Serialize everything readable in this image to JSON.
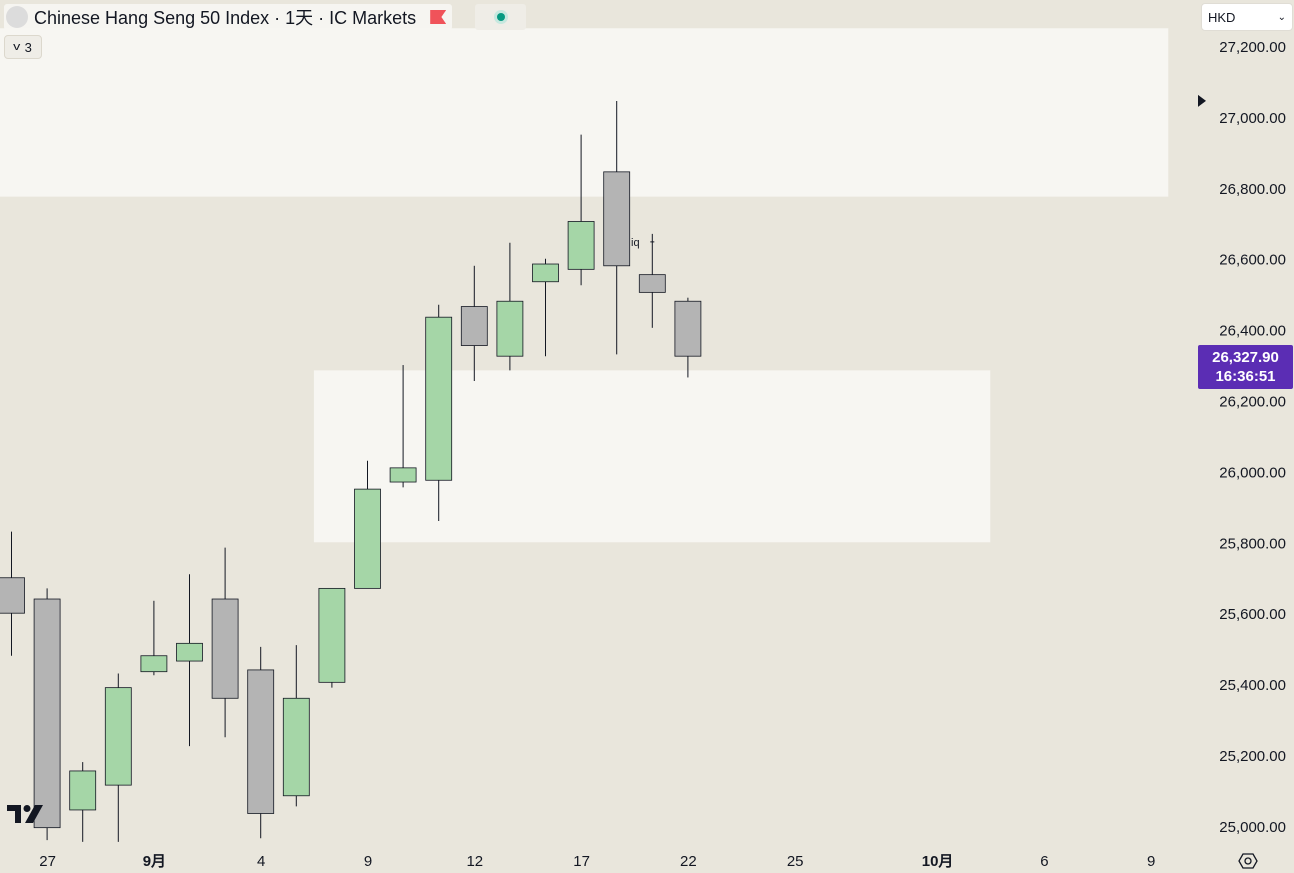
{
  "header": {
    "title": "Chinese Hang Seng 50 Index · 1天 · IC Markets",
    "indicator_count": "3",
    "currency": "HKD"
  },
  "price_badge": {
    "price": "26,327.90",
    "countdown": "16:36:51"
  },
  "annotation": {
    "liq_label": "iq"
  },
  "colors": {
    "background": "#e9e6dc",
    "zone_fill": "#f7f6f2",
    "up_candle": "#a5d6a7",
    "down_candle": "#b4b4b4",
    "wick": "#131722",
    "badge": "#5b2db4"
  },
  "icons": {
    "flag": "flag-icon",
    "status": "market-open-dot-icon",
    "collapse": "chevron-down-icon",
    "currency_dropdown": "chevron-down-icon",
    "logo": "tradingview-logo-icon",
    "settings": "settings-icon",
    "price_marker": "triangle-right-icon"
  },
  "chart_data": {
    "type": "candlestick",
    "symbol": "Chinese Hang Seng 50 Index",
    "interval": "1天",
    "exchange": "IC Markets",
    "currency": "HKD",
    "y_ticks": [
      "27,200.00",
      "27,000.00",
      "26,800.00",
      "26,600.00",
      "26,400.00",
      "26,200.00",
      "26,000.00",
      "25,800.00",
      "25,600.00",
      "25,400.00",
      "25,200.00",
      "25,000.00"
    ],
    "y_tick_values": [
      27200,
      27000,
      26800,
      26600,
      26400,
      26200,
      26000,
      25800,
      25600,
      25400,
      25200,
      25000
    ],
    "ylim": [
      24920,
      27250
    ],
    "x_labels": [
      {
        "text": "27",
        "bar": 1,
        "bold": false
      },
      {
        "text": "9月",
        "bar": 4,
        "bold": true
      },
      {
        "text": "4",
        "bar": 7,
        "bold": false
      },
      {
        "text": "9",
        "bar": 10,
        "bold": false
      },
      {
        "text": "12",
        "bar": 13,
        "bold": false
      },
      {
        "text": "17",
        "bar": 16,
        "bold": false
      },
      {
        "text": "22",
        "bar": 19,
        "bold": false
      },
      {
        "text": "25",
        "bar": 22,
        "bold": false
      },
      {
        "text": "10月",
        "bar": 26,
        "bold": true
      },
      {
        "text": "6",
        "bar": 29,
        "bold": false
      },
      {
        "text": "9",
        "bar": 32,
        "bold": false
      }
    ],
    "candles": [
      {
        "open": 25700,
        "high": 25830,
        "low": 25480,
        "close": 25600
      },
      {
        "open": 25640,
        "high": 25670,
        "low": 24960,
        "close": 24995
      },
      {
        "open": 25045,
        "high": 25180,
        "low": 24955,
        "close": 25155
      },
      {
        "open": 25115,
        "high": 25430,
        "low": 24955,
        "close": 25390
      },
      {
        "open": 25435,
        "high": 25635,
        "low": 25425,
        "close": 25480
      },
      {
        "open": 25465,
        "high": 25710,
        "low": 25225,
        "close": 25515
      },
      {
        "open": 25640,
        "high": 25785,
        "low": 25250,
        "close": 25360
      },
      {
        "open": 25440,
        "high": 25505,
        "low": 24965,
        "close": 25035
      },
      {
        "open": 25085,
        "high": 25510,
        "low": 25055,
        "close": 25360
      },
      {
        "open": 25405,
        "high": 25670,
        "low": 25390,
        "close": 25670
      },
      {
        "open": 25670,
        "high": 26030,
        "low": 25670,
        "close": 25950
      },
      {
        "open": 25970,
        "high": 26300,
        "low": 25955,
        "close": 26010
      },
      {
        "open": 25975,
        "high": 26470,
        "low": 25860,
        "close": 26435
      },
      {
        "open": 26465,
        "high": 26580,
        "low": 26255,
        "close": 26355
      },
      {
        "open": 26325,
        "high": 26645,
        "low": 26285,
        "close": 26480
      },
      {
        "open": 26535,
        "high": 26600,
        "low": 26325,
        "close": 26585
      },
      {
        "open": 26570,
        "high": 26950,
        "low": 26525,
        "close": 26705
      },
      {
        "open": 26845,
        "high": 27045,
        "low": 26330,
        "close": 26580
      },
      {
        "open": 26555,
        "high": 26670,
        "low": 26405,
        "close": 26505
      },
      {
        "open": 26480,
        "high": 26490,
        "low": 26265,
        "close": 26325
      }
    ],
    "zones": [
      {
        "top": 27250,
        "bottom": 26775,
        "from_bar": -2,
        "to_bar": 33
      },
      {
        "top": 26285,
        "bottom": 25800,
        "from_bar": 9,
        "to_bar": 28
      }
    ],
    "last_price": 26327.9,
    "last_price_marker": 27000,
    "grid": false,
    "legend": "top-left"
  }
}
